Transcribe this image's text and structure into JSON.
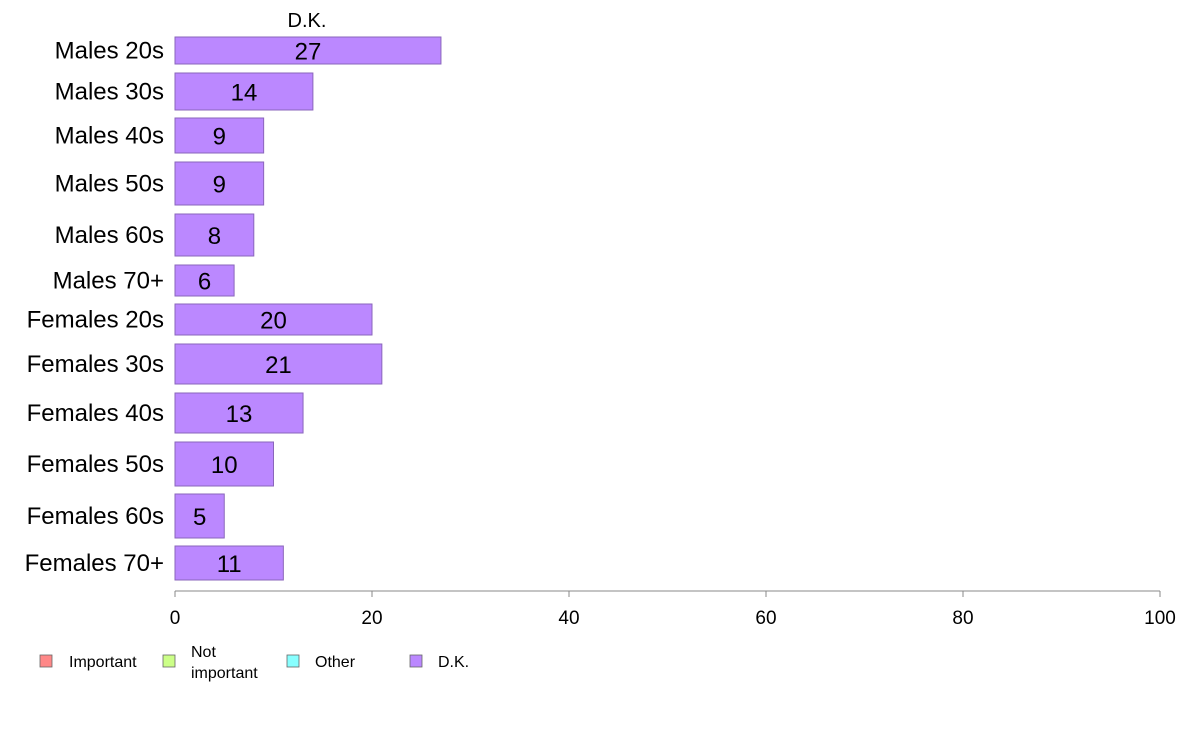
{
  "chart_data": {
    "type": "bar",
    "orientation": "horizontal",
    "title": "D.K.",
    "categories": [
      "Males 20s",
      "Males 30s",
      "Males 40s",
      "Males 50s",
      "Males 60s",
      "Males 70+",
      "Females 20s",
      "Females 30s",
      "Females 40s",
      "Females 50s",
      "Females 60s",
      "Females 70+"
    ],
    "series": [
      {
        "name": "D.K.",
        "color": "#bb88ff",
        "values": [
          27,
          14,
          9,
          9,
          8,
          6,
          20,
          21,
          13,
          10,
          5,
          11
        ]
      }
    ],
    "data_labels": [
      "27",
      "14",
      "9",
      "9",
      "8",
      "6",
      "20",
      "21",
      "13",
      "10",
      "5",
      "11"
    ],
    "xlim": [
      0,
      100
    ],
    "x_ticks": [
      0,
      20,
      40,
      60,
      80,
      100
    ],
    "grid": false,
    "legend": {
      "placement": "bottom-left",
      "items": [
        {
          "label": "Important",
          "color": "#ff8888"
        },
        {
          "label": "Not important",
          "color": "#ccff88"
        },
        {
          "label": "Other",
          "color": "#88ffff"
        },
        {
          "label": "D.K.",
          "color": "#bb88ff"
        }
      ]
    }
  }
}
